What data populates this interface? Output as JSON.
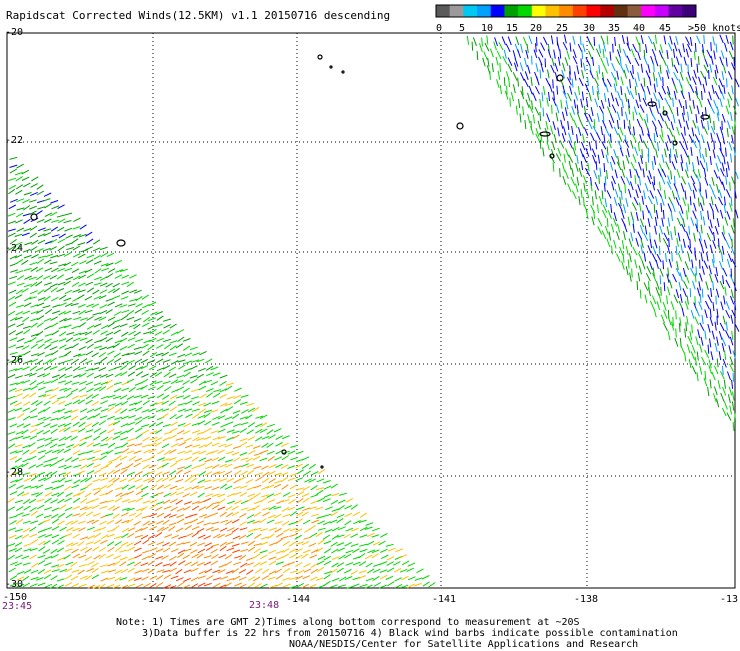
{
  "title": "Rapidscat Corrected Winds(12.5KM) v1.1 20150716 descending",
  "colorbar": {
    "colors": [
      "#5a5a5a",
      "#9a9a9a",
      "#00c8f0",
      "#00a0ff",
      "#0000ff",
      "#00a000",
      "#00d800",
      "#ffff00",
      "#ffc000",
      "#ff8c00",
      "#ff4000",
      "#ff0000",
      "#b40000",
      "#603010",
      "#8c5a3c",
      "#ff00ff",
      "#c800ff",
      "#6000a0",
      "#3c0078"
    ],
    "labels": [
      "0",
      "5",
      "10",
      "15",
      "20",
      "25",
      "30",
      "35",
      "40",
      "45",
      ">50 knots"
    ]
  },
  "axes": {
    "lat_labels": [
      "-20",
      "-22",
      "-24",
      "-26",
      "-28",
      "-30"
    ],
    "lon_labels": [
      "-150",
      "-147",
      "-144",
      "-141",
      "-138",
      "-13"
    ]
  },
  "times": [
    "23:45",
    "23:48"
  ],
  "notes": [
    "Note: 1) Times are GMT 2)Times along bottom correspond to measurement at ~20S",
    "3)Data buffer is 22 hrs from 20150716 4) Black wind barbs indicate possible contamination",
    "NOAA/NESDIS/Center for Satellite Applications and Research"
  ]
}
